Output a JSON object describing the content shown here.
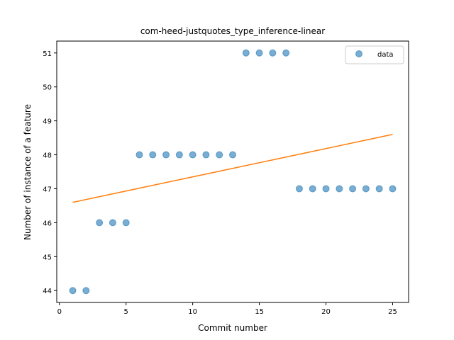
{
  "chart_data": {
    "type": "scatter",
    "title": "com-heed-justquotes_type_inference-linear",
    "xlabel": "Commit number",
    "ylabel": "Number of instance of a feature",
    "xlim": [
      -0.2,
      26.2
    ],
    "ylim": [
      43.65,
      51.35
    ],
    "xticks": [
      0,
      5,
      10,
      15,
      20,
      25
    ],
    "yticks": [
      44,
      45,
      46,
      47,
      48,
      49,
      50,
      51
    ],
    "grid": false,
    "legend_position": "top-right",
    "series": [
      {
        "name": "data",
        "kind": "scatter",
        "color": "#1f77b4",
        "x": [
          1,
          2,
          3,
          4,
          5,
          6,
          7,
          8,
          9,
          10,
          11,
          12,
          13,
          14,
          15,
          16,
          17,
          18,
          19,
          20,
          21,
          22,
          23,
          24,
          25
        ],
        "y": [
          44,
          44,
          46,
          46,
          46,
          48,
          48,
          48,
          48,
          48,
          48,
          48,
          48,
          51,
          51,
          51,
          51,
          47,
          47,
          47,
          47,
          47,
          47,
          47,
          47
        ]
      },
      {
        "kind": "line",
        "color": "#ff7f0e",
        "x": [
          1,
          25
        ],
        "y": [
          46.6,
          48.6
        ]
      }
    ]
  }
}
